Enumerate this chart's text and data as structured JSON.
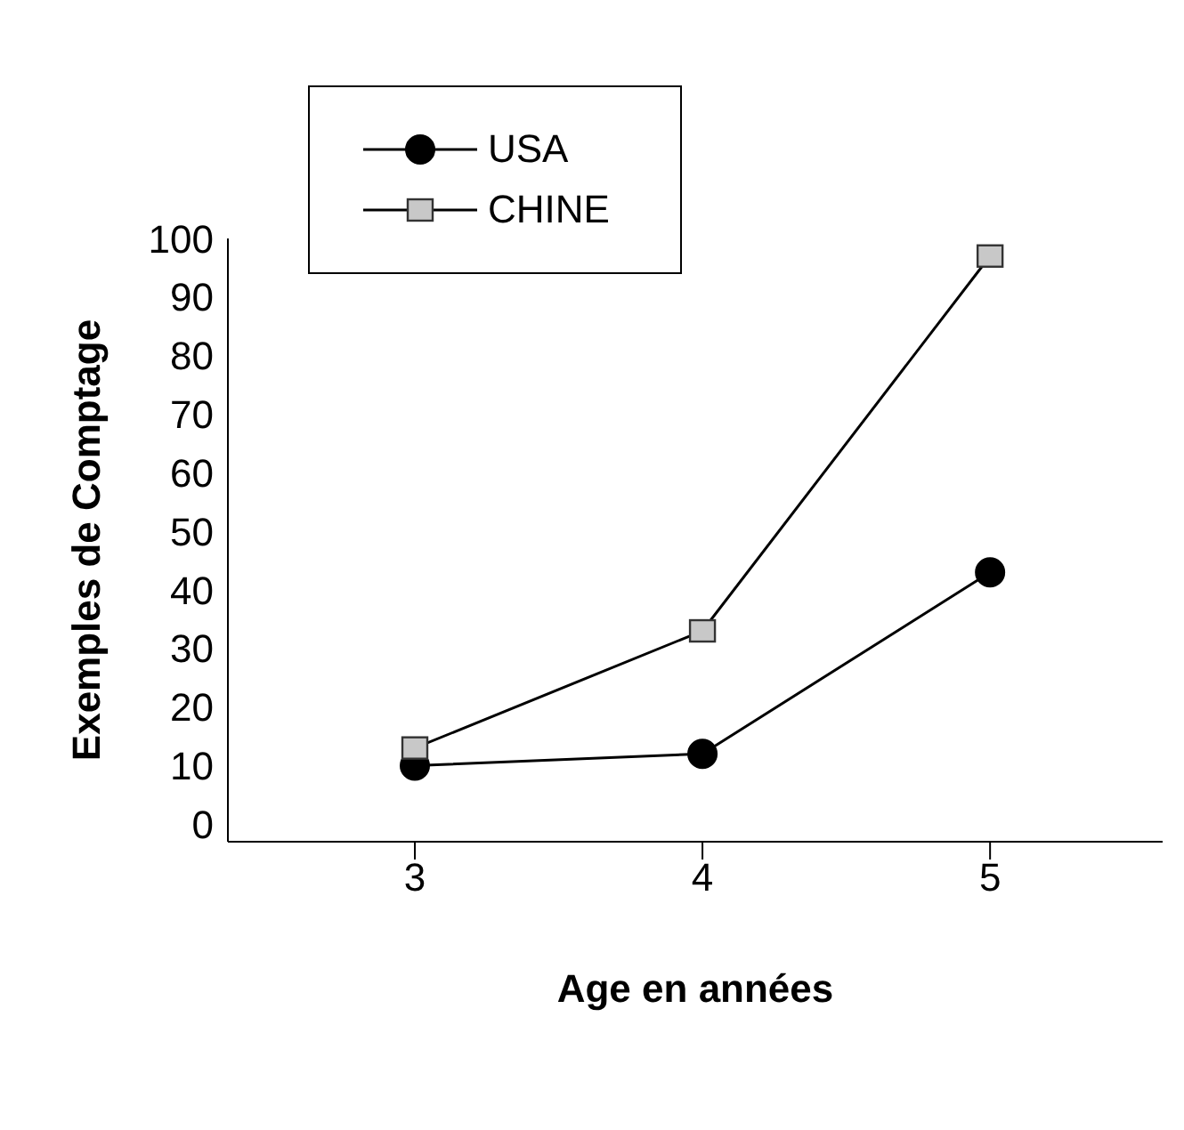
{
  "chart_data": {
    "type": "line",
    "xlabel": "Age en années",
    "ylabel": "Exemples de Comptage",
    "x": [
      3,
      4,
      5
    ],
    "series": [
      {
        "name": "USA",
        "color": "#000000",
        "marker": "circle",
        "values": [
          10,
          12,
          43
        ]
      },
      {
        "name": "CHINE",
        "color": "#c8c8c8",
        "marker": "square",
        "values": [
          13,
          33,
          97
        ]
      }
    ],
    "xlim": [
      2.35,
      5.6
    ],
    "xticks": [
      3,
      4,
      5
    ],
    "ylim": [
      -3,
      100
    ],
    "yticks": [
      0,
      10,
      20,
      30,
      40,
      50,
      60,
      70,
      80,
      90,
      100
    ],
    "grid": false,
    "legend": "top left",
    "line_style": "solid"
  }
}
